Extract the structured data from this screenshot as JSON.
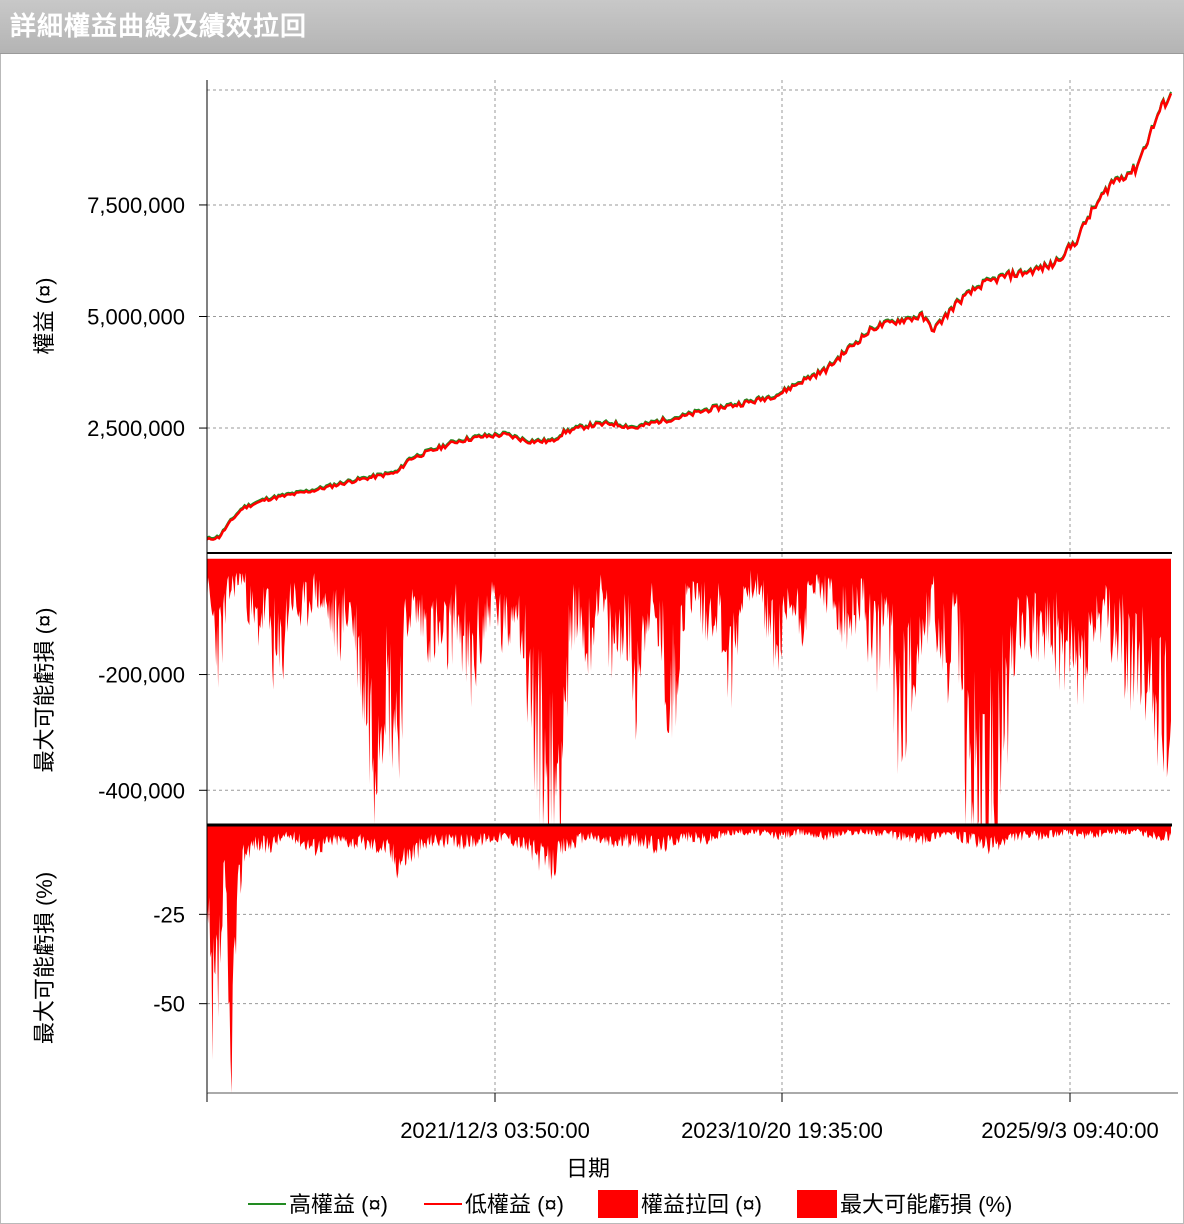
{
  "window": {
    "title": "詳細權益曲線及績效拉回"
  },
  "x_axis": {
    "label": "日期",
    "ticks": [
      "2021/12/3 03:50:00",
      "2023/10/20 19:35:00",
      "2025/9/3 09:40:00"
    ]
  },
  "legend": [
    {
      "label": "高權益 (¤)",
      "color": "#228b22",
      "kind": "line"
    },
    {
      "label": "低權益 (¤)",
      "color": "#ff0000",
      "kind": "line"
    },
    {
      "label": "權益拉回 (¤)",
      "color": "#ff0000",
      "kind": "box"
    },
    {
      "label": "最大可能虧損 (%)",
      "color": "#ff0000",
      "kind": "box"
    }
  ],
  "chart_data": [
    {
      "type": "line",
      "panel": "equity",
      "ylabel": "權益 (¤)",
      "ylim": [
        -300000,
        10300000
      ],
      "yticks": [
        2500000,
        5000000,
        7500000
      ],
      "ytick_labels": [
        "2,500,000",
        "5,000,000",
        "7,500,000"
      ],
      "x_date_range": [
        "2020-01-01",
        "2026-09-30"
      ],
      "series": [
        {
          "name": "高權益 (¤)",
          "color": "#228b22",
          "x": [
            "2020-01-01",
            "2020-02-01",
            "2020-03-01",
            "2020-04-01",
            "2020-06-01",
            "2020-08-01",
            "2020-10-01",
            "2021-01-01",
            "2021-03-01",
            "2021-05-01",
            "2021-06-01",
            "2021-08-01",
            "2021-10-01",
            "2021-12-01",
            "2022-02-01",
            "2022-04-01",
            "2022-06-01",
            "2022-07-01",
            "2022-09-01",
            "2022-11-01",
            "2023-01-01",
            "2023-03-01",
            "2023-05-01",
            "2023-07-01",
            "2023-09-01",
            "2023-11-01",
            "2024-01-01",
            "2024-03-01",
            "2024-05-01",
            "2024-07-01",
            "2024-09-01",
            "2024-11-01",
            "2025-01-01",
            "2025-02-01",
            "2025-04-01",
            "2025-06-01",
            "2025-08-01",
            "2025-10-01",
            "2025-12-01",
            "2026-02-01",
            "2026-03-01",
            "2026-05-01",
            "2026-07-01",
            "2026-09-01",
            "2026-09-30"
          ],
          "values": [
            0,
            50000,
            400000,
            700000,
            900000,
            1000000,
            1100000,
            1300000,
            1400000,
            1500000,
            1800000,
            2000000,
            2200000,
            2300000,
            2350000,
            2200000,
            2200000,
            2400000,
            2550000,
            2600000,
            2500000,
            2650000,
            2750000,
            2900000,
            3000000,
            3100000,
            3250000,
            3550000,
            3800000,
            4300000,
            4750000,
            4900000,
            5000000,
            4700000,
            5300000,
            5700000,
            5900000,
            6000000,
            6150000,
            6700000,
            7200000,
            8000000,
            8300000,
            9600000,
            10000000
          ]
        },
        {
          "name": "低權益 (¤)",
          "color": "#ff0000",
          "x": [
            "2020-01-01",
            "2020-02-01",
            "2020-03-01",
            "2020-04-01",
            "2020-06-01",
            "2020-08-01",
            "2020-10-01",
            "2021-01-01",
            "2021-03-01",
            "2021-05-01",
            "2021-06-01",
            "2021-08-01",
            "2021-10-01",
            "2021-12-01",
            "2022-02-01",
            "2022-04-01",
            "2022-06-01",
            "2022-07-01",
            "2022-09-01",
            "2022-11-01",
            "2023-01-01",
            "2023-03-01",
            "2023-05-01",
            "2023-07-01",
            "2023-09-01",
            "2023-11-01",
            "2024-01-01",
            "2024-03-01",
            "2024-05-01",
            "2024-07-01",
            "2024-09-01",
            "2024-11-01",
            "2025-01-01",
            "2025-02-01",
            "2025-04-01",
            "2025-06-01",
            "2025-08-01",
            "2025-10-01",
            "2025-12-01",
            "2026-02-01",
            "2026-03-01",
            "2026-05-01",
            "2026-07-01",
            "2026-09-01",
            "2026-09-30"
          ],
          "values": [
            0,
            50000,
            400000,
            700000,
            900000,
            1000000,
            1100000,
            1300000,
            1400000,
            1500000,
            1800000,
            2000000,
            2200000,
            2300000,
            2350000,
            2200000,
            2200000,
            2400000,
            2550000,
            2600000,
            2500000,
            2650000,
            2750000,
            2900000,
            3000000,
            3100000,
            3250000,
            3550000,
            3800000,
            4300000,
            4750000,
            4900000,
            5000000,
            4700000,
            5300000,
            5700000,
            5900000,
            6000000,
            6150000,
            6700000,
            7200000,
            8000000,
            8300000,
            9600000,
            10000000
          ]
        }
      ]
    },
    {
      "type": "area",
      "panel": "drawdown_amount",
      "ylabel": "最大可能虧損 (¤)",
      "ylim": [
        -460000,
        10000
      ],
      "yticks": [
        -200000,
        -400000
      ],
      "ytick_labels": [
        "-200,000",
        "-400,000"
      ],
      "series": [
        {
          "name": "權益拉回 (¤)",
          "color": "#ff0000",
          "x": [
            "2020-01-01",
            "2020-02-01",
            "2020-03-01",
            "2020-04-01",
            "2020-05-01",
            "2020-06-01",
            "2020-07-01",
            "2020-08-01",
            "2020-09-01",
            "2020-10-01",
            "2020-12-01",
            "2021-01-01",
            "2021-03-01",
            "2021-04-01",
            "2021-05-01",
            "2021-06-01",
            "2021-07-01",
            "2021-09-01",
            "2021-10-01",
            "2021-11-01",
            "2022-01-01",
            "2022-02-01",
            "2022-03-01",
            "2022-04-01",
            "2022-05-01",
            "2022-06-01",
            "2022-07-01",
            "2022-08-01",
            "2022-09-01",
            "2022-10-01",
            "2022-11-01",
            "2022-12-01",
            "2023-01-01",
            "2023-02-01",
            "2023-03-01",
            "2023-04-01",
            "2023-05-01",
            "2023-06-01",
            "2023-07-01",
            "2023-08-01",
            "2023-09-01",
            "2023-10-01",
            "2023-11-01",
            "2024-01-01",
            "2024-02-01",
            "2024-03-01",
            "2024-04-01",
            "2024-05-01",
            "2024-06-01",
            "2024-07-01",
            "2024-08-01",
            "2024-09-01",
            "2024-10-01",
            "2024-11-01",
            "2024-12-01",
            "2025-01-01",
            "2025-02-01",
            "2025-03-01",
            "2025-04-01",
            "2025-05-01",
            "2025-07-01",
            "2025-09-01",
            "2025-11-01",
            "2026-01-01",
            "2026-02-01",
            "2026-04-01",
            "2026-06-01",
            "2026-08-01",
            "2026-09-01",
            "2026-09-30"
          ],
          "values": [
            -60000,
            -150000,
            -50000,
            -30000,
            -120000,
            -80000,
            -200000,
            -60000,
            -100000,
            -50000,
            -120000,
            -80000,
            -300000,
            -200000,
            -280000,
            -80000,
            -100000,
            -150000,
            -90000,
            -200000,
            -60000,
            -140000,
            -60000,
            -200000,
            -350000,
            -440000,
            -250000,
            -80000,
            -150000,
            -50000,
            -160000,
            -100000,
            -200000,
            -80000,
            -120000,
            -250000,
            -90000,
            -50000,
            -100000,
            -80000,
            -200000,
            -60000,
            -40000,
            -150000,
            -70000,
            -100000,
            -40000,
            -60000,
            -90000,
            -120000,
            -60000,
            -170000,
            -80000,
            -250000,
            -200000,
            -120000,
            -70000,
            -200000,
            -100000,
            -370000,
            -450000,
            -100000,
            -120000,
            -150000,
            -200000,
            -100000,
            -150000,
            -200000,
            -230000,
            -280000
          ]
        }
      ]
    },
    {
      "type": "area",
      "panel": "drawdown_percent",
      "ylabel": "最大可能虧損 (%)",
      "ylim": [
        -75,
        0
      ],
      "yticks": [
        -25,
        -50
      ],
      "ytick_labels": [
        "-25",
        "-50"
      ],
      "series": [
        {
          "name": "最大可能虧損 (%)",
          "color": "#ff0000",
          "x": [
            "2020-01-01",
            "2020-01-15",
            "2020-02-01",
            "2020-02-15",
            "2020-03-01",
            "2020-03-15",
            "2020-04-01",
            "2020-05-01",
            "2020-06-01",
            "2020-07-01",
            "2020-08-01",
            "2020-10-01",
            "2020-12-01",
            "2021-02-01",
            "2021-04-01",
            "2021-05-01",
            "2021-06-01",
            "2021-08-01",
            "2021-10-01",
            "2021-12-01",
            "2022-02-01",
            "2022-04-01",
            "2022-05-01",
            "2022-06-01",
            "2022-07-01",
            "2022-09-01",
            "2022-11-01",
            "2023-01-01",
            "2023-03-01",
            "2023-05-01",
            "2023-07-01",
            "2023-09-01",
            "2023-11-01",
            "2024-01-01",
            "2024-03-01",
            "2024-05-01",
            "2024-07-01",
            "2024-09-01",
            "2024-11-01",
            "2025-01-01",
            "2025-03-01",
            "2025-05-01",
            "2025-06-01",
            "2025-07-01",
            "2025-09-01",
            "2025-11-01",
            "2026-01-01",
            "2026-03-01",
            "2026-05-01",
            "2026-07-01",
            "2026-09-01",
            "2026-09-30"
          ],
          "values": [
            -25,
            -60,
            -40,
            -15,
            -70,
            -30,
            -8,
            -5,
            -6,
            -4,
            -3,
            -6,
            -4,
            -5,
            -6,
            -10,
            -8,
            -4,
            -5,
            -4,
            -3,
            -6,
            -9,
            -11,
            -6,
            -3,
            -5,
            -4,
            -6,
            -3,
            -4,
            -2,
            -2,
            -3,
            -2,
            -3,
            -2,
            -2,
            -3,
            -4,
            -2,
            -4,
            -5,
            -6,
            -3,
            -3,
            -2,
            -3,
            -2,
            -2,
            -3,
            -3
          ]
        }
      ]
    }
  ]
}
